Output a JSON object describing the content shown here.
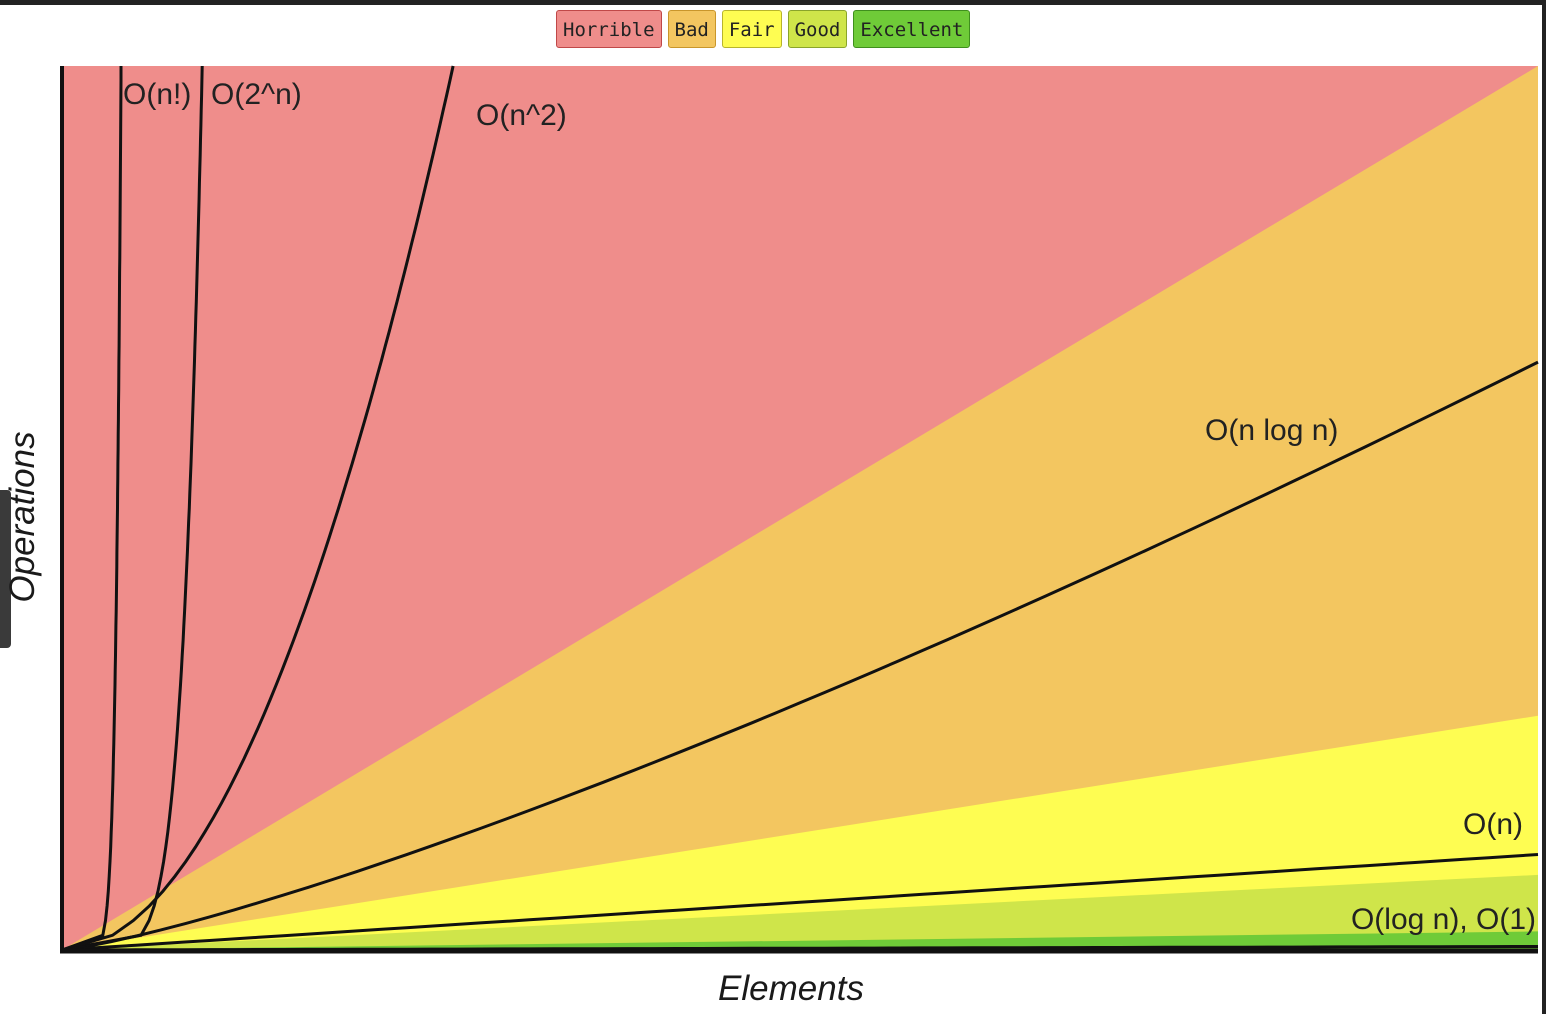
{
  "chart_data": {
    "type": "area",
    "xlabel": "Elements",
    "ylabel": "Operations",
    "legend": {
      "placement": "top-center",
      "items": [
        {
          "label": "Horrible",
          "color": "#ef8d8b",
          "border": "#c04848"
        },
        {
          "label": "Bad",
          "color": "#f3c660",
          "border": "#c9962b"
        },
        {
          "label": "Fair",
          "color": "#fefd52",
          "border": "#b8b52a"
        },
        {
          "label": "Good",
          "color": "#cfe54a",
          "border": "#8aa42a"
        },
        {
          "label": "Excellent",
          "color": "#6fcb38",
          "border": "#3f8f1d"
        }
      ]
    },
    "grid": false,
    "xlim": [
      0,
      100
    ],
    "ylim": [
      0,
      100
    ],
    "regions": [
      {
        "name": "Horrible",
        "color": "#ef8d8b",
        "upper_edge_at_xmax": 100
      },
      {
        "name": "Bad",
        "color": "#f3c660",
        "upper_edge_at_xmax": 100
      },
      {
        "name": "Fair",
        "color": "#fefd52",
        "upper_edge_at_xmax": 26.5
      },
      {
        "name": "Good",
        "color": "#cfe54a",
        "upper_edge_at_xmax": 8.5
      },
      {
        "name": "Excellent",
        "color": "#6fcb38",
        "upper_edge_at_xmax": 2.1
      }
    ],
    "series": [
      {
        "name": "O(n!)",
        "label": "O(n!)",
        "x_at_top": 4
      },
      {
        "name": "O(2^n)",
        "label": "O(2^n)",
        "x_at_top": 9.5
      },
      {
        "name": "O(n^2)",
        "label": "O(n^2)",
        "x_at_top": 26.5
      },
      {
        "name": "O(n log n)",
        "label": "O(n log n)",
        "y_at_xmax": 66.5
      },
      {
        "name": "O(n)",
        "label": "O(n)",
        "y_at_xmax": 10.8
      },
      {
        "name": "O(log n), O(1)",
        "label": "O(log n), O(1)",
        "y_at_xmax": 0.4
      }
    ]
  }
}
